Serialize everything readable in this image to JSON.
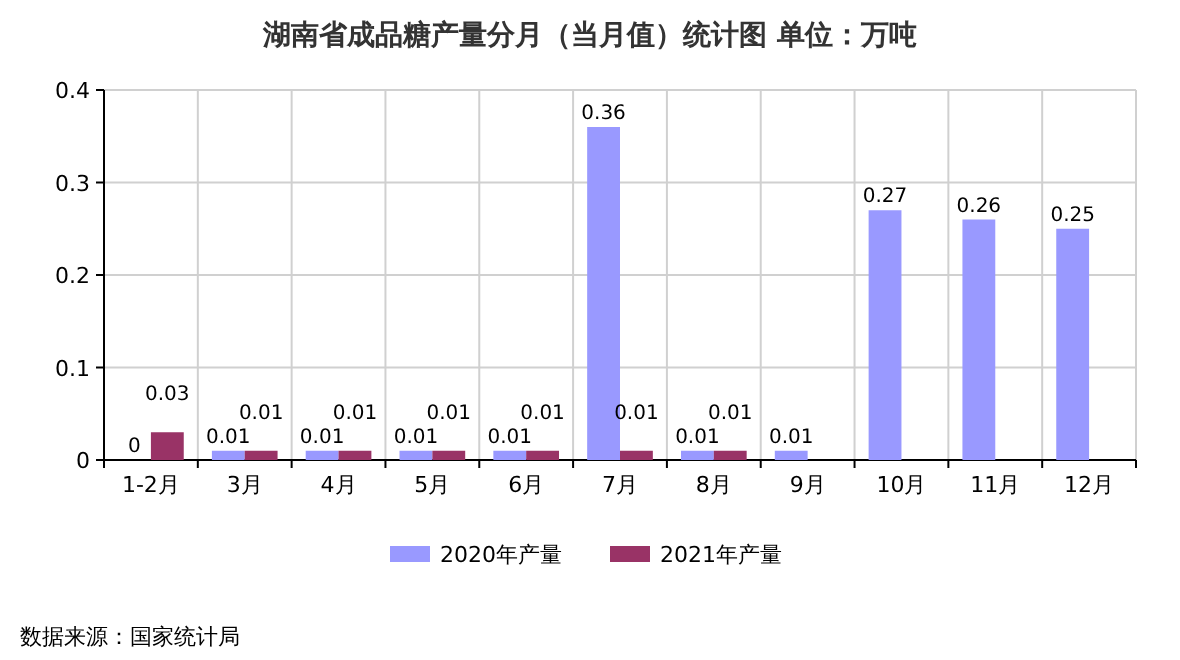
{
  "chart_data": {
    "type": "bar",
    "title": "湖南省成品糖产量分月（当月值）统计图 单位：万吨",
    "categories": [
      "1-2月",
      "3月",
      "4月",
      "5月",
      "6月",
      "7月",
      "8月",
      "9月",
      "10月",
      "11月",
      "12月"
    ],
    "series": [
      {
        "name": "2020年产量",
        "color": "#9999ff",
        "values": [
          0,
          0.01,
          0.01,
          0.01,
          0.01,
          0.36,
          0.01,
          0.01,
          0.27,
          0.26,
          0.25
        ]
      },
      {
        "name": "2021年产量",
        "color": "#993366",
        "values": [
          0.03,
          0.01,
          0.01,
          0.01,
          0.01,
          0.01,
          0.01,
          null,
          null,
          null,
          null
        ]
      }
    ],
    "ylim": [
      0,
      0.4
    ],
    "yticks": [
      0,
      0.1,
      0.2,
      0.3,
      0.4
    ],
    "grid": true,
    "legend": "bottom",
    "data_labels": true,
    "annotations": [
      "数据来源：国家统计局"
    ]
  }
}
